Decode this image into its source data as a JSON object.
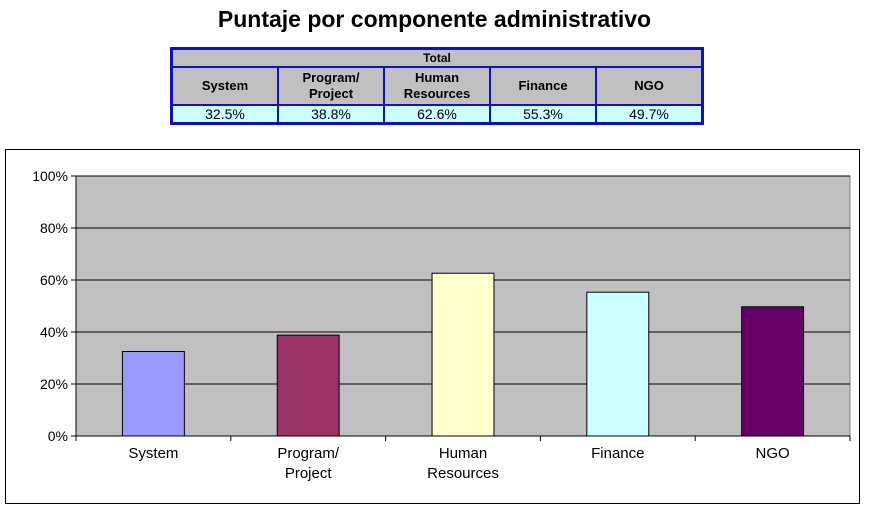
{
  "title": "Puntaje por componente administrativo",
  "table": {
    "header": "Total",
    "columns": [
      [
        "System"
      ],
      [
        "Program/",
        "Project"
      ],
      [
        "Human",
        "Resources"
      ],
      [
        "Finance"
      ],
      [
        "NGO"
      ]
    ],
    "values": [
      "32.5%",
      "38.8%",
      "62.6%",
      "55.3%",
      "49.7%"
    ]
  },
  "chart_data": {
    "type": "bar",
    "categories": [
      "System",
      "Program/ Project",
      "Human Resources",
      "Finance",
      "NGO"
    ],
    "values": [
      32.5,
      38.8,
      62.6,
      55.3,
      49.7
    ],
    "bar_colors": [
      "#9999ff",
      "#993366",
      "#ffffcc",
      "#ccffff",
      "#660066"
    ],
    "plot_background": "#c0c0c0",
    "ylim": [
      0,
      100
    ],
    "yticks": [
      "0%",
      "20%",
      "40%",
      "60%",
      "80%",
      "100%"
    ],
    "ytick_values": [
      0,
      20,
      40,
      60,
      80,
      100
    ],
    "grid": true,
    "legend": false,
    "xlabel": "",
    "ylabel": ""
  }
}
